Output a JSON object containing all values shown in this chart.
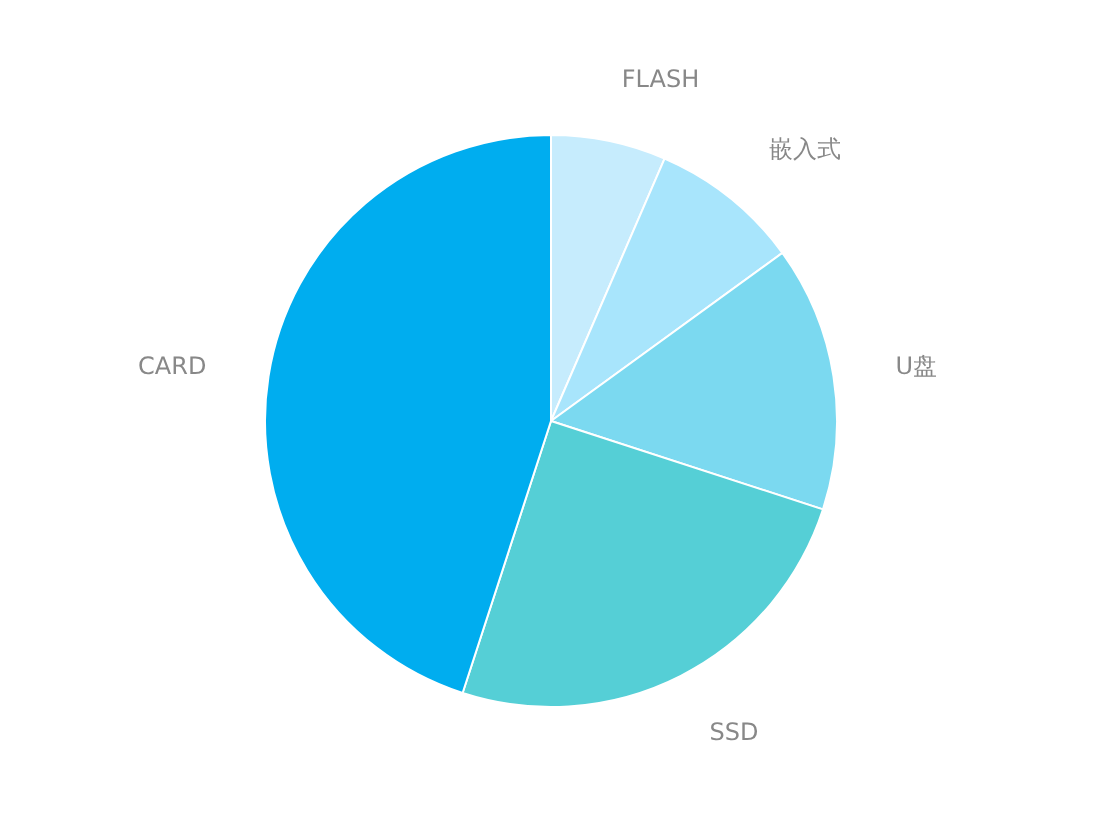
{
  "chart_data": {
    "type": "pie",
    "categories": [
      "FLASH",
      "嵌入式",
      "U盘",
      "SSD",
      "CARD"
    ],
    "values": [
      6.5,
      8.5,
      15,
      25,
      45
    ],
    "colors": [
      "#c6ecfd",
      "#a8e5fc",
      "#7bd9f0",
      "#55cfd6",
      "#00adef"
    ]
  }
}
